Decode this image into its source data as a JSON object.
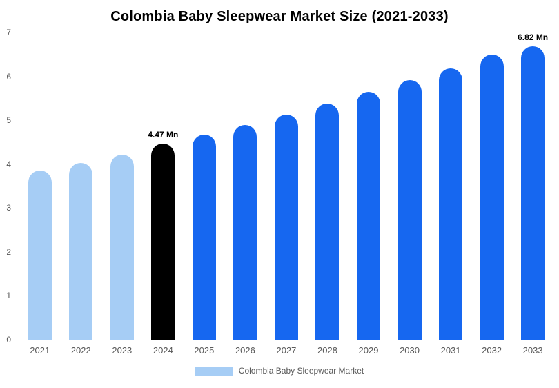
{
  "chart_data": {
    "type": "bar",
    "title": "Colombia Baby Sleepwear Market Size (2021-2033)",
    "categories": [
      "2021",
      "2022",
      "2023",
      "2024",
      "2025",
      "2026",
      "2027",
      "2028",
      "2029",
      "2030",
      "2031",
      "2032",
      "2033"
    ],
    "values": [
      3.85,
      4.03,
      4.22,
      4.47,
      4.68,
      4.9,
      5.13,
      5.38,
      5.64,
      5.91,
      6.19,
      6.49,
      6.82
    ],
    "bar_colors": [
      "#a6cdf5",
      "#a6cdf5",
      "#a6cdf5",
      "#000000",
      "#1667f0",
      "#1667f0",
      "#1667f0",
      "#1667f0",
      "#1667f0",
      "#1667f0",
      "#1667f0",
      "#1667f0",
      "#1667f0"
    ],
    "data_labels": [
      "",
      "",
      "",
      "4.47 Mn",
      "",
      "",
      "",
      "",
      "",
      "",
      "",
      "",
      "6.82 Mn"
    ],
    "y_ticks": [
      0,
      1,
      2,
      3,
      4,
      5,
      6,
      7
    ],
    "ylim": [
      0,
      7
    ],
    "xlabel": "",
    "ylabel": "",
    "grid": false,
    "legend": {
      "label": "Colombia Baby Sleepwear Market",
      "swatch_color": "#a6cdf5",
      "position": "bottom"
    }
  }
}
